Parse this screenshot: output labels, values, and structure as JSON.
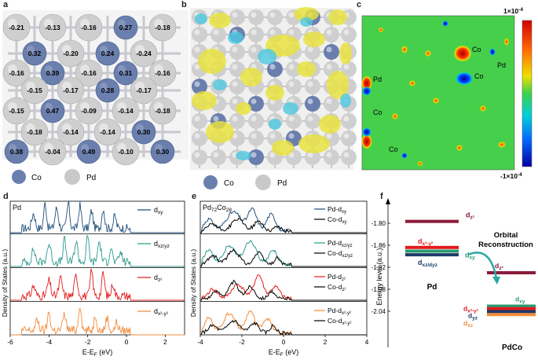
{
  "panels": {
    "a": {
      "label": "a",
      "legend": {
        "co": "Co",
        "pd": "Pd"
      },
      "charges": [
        {
          "v": "-0.21",
          "t": "pd"
        },
        {
          "v": "-0.13",
          "t": "pd"
        },
        {
          "v": "-0.16",
          "t": "pd"
        },
        {
          "v": "0.27",
          "t": "co"
        },
        {
          "v": "-0.18",
          "t": "pd"
        },
        {
          "v": "0.32",
          "t": "co"
        },
        {
          "v": "-0.20",
          "t": "pd"
        },
        {
          "v": "0.24",
          "t": "co"
        },
        {
          "v": "-0.24",
          "t": "pd"
        },
        {
          "v": "-0.16",
          "t": "pd"
        },
        {
          "v": "0.39",
          "t": "co"
        },
        {
          "v": "-0.16",
          "t": "pd"
        },
        {
          "v": "0.31",
          "t": "co"
        },
        {
          "v": "-0.16",
          "t": "pd"
        },
        {
          "v": "-0.15",
          "t": "pd"
        },
        {
          "v": "-0.17",
          "t": "pd"
        },
        {
          "v": "0.28",
          "t": "co"
        },
        {
          "v": "-0.17",
          "t": "pd"
        },
        {
          "v": "-0.15",
          "t": "pd"
        },
        {
          "v": "0.47",
          "t": "co"
        },
        {
          "v": "-0.09",
          "t": "pd"
        },
        {
          "v": "-0.14",
          "t": "pd"
        },
        {
          "v": "-0.18",
          "t": "pd"
        },
        {
          "v": "-0.18",
          "t": "pd"
        },
        {
          "v": "-0.14",
          "t": "pd"
        },
        {
          "v": "-0.14",
          "t": "pd"
        },
        {
          "v": "0.30",
          "t": "co"
        },
        {
          "v": "0.38",
          "t": "co"
        },
        {
          "v": "-0.04",
          "t": "pd"
        },
        {
          "v": "0.49",
          "t": "co"
        },
        {
          "v": "-0.10",
          "t": "pd"
        },
        {
          "v": "0.30",
          "t": "co"
        }
      ]
    },
    "b": {
      "label": "b",
      "legend": {
        "co": "Co",
        "pd": "Pd"
      }
    },
    "c": {
      "label": "c",
      "scale_max": "1×10",
      "scale_max_exp": "-4",
      "scale_min": "-1×10",
      "scale_min_exp": "-4",
      "atoms": [
        "Co",
        "Pd",
        "Pd",
        "Co",
        "Co",
        "Co"
      ]
    },
    "d": {
      "label": "d",
      "title": "Pd",
      "ylabel": "Density of States (a.u.)",
      "xlabel_main": "E-E",
      "xlabel_sub": "F",
      "xlabel_unit": " (eV)",
      "xticks": [
        "-6",
        "-4",
        "-2",
        "0",
        "2"
      ],
      "legend": [
        {
          "base": "d",
          "sub": "xy",
          "color": "#1f4e79"
        },
        {
          "base": "d",
          "sub": "xz/yz",
          "color": "#2a9a8e"
        },
        {
          "base": "d",
          "sub": "z²",
          "color": "#e41a1c"
        },
        {
          "base": "d",
          "sub": "x²-y²",
          "color": "#f28c3c"
        }
      ]
    },
    "e": {
      "label": "e",
      "title_main": "Pd",
      "title_sub1": "72",
      "title_mid": "Co",
      "title_sub2": "28",
      "ylabel": "Density of States (a.u.)",
      "xlabel_main": "E-E",
      "xlabel_sub": "F",
      "xlabel_unit": " (eV)",
      "xticks": [
        "-4",
        "-2",
        "0",
        "2",
        "4"
      ],
      "legend": [
        {
          "pd": "Pd-d",
          "co": "Co-d",
          "sub": "xy",
          "color": "#1f4e79"
        },
        {
          "pd": "Pd-d",
          "co": "Co-d",
          "sub": "xz/yz",
          "color": "#2a9a8e"
        },
        {
          "pd": "Pd-d",
          "co": "Co-d",
          "sub": "z²",
          "color": "#e41a1c"
        },
        {
          "pd": "Pd-d",
          "co": "Co-d",
          "sub": "x²-y²",
          "color": "#f28c3c"
        }
      ]
    },
    "f": {
      "label": "f",
      "ylabel": "Energy level (a.u.)",
      "yticks": [
        "-1.80",
        "-1.86",
        "-1.92",
        "-1.98",
        "-2.04"
      ],
      "pd_label": "Pd",
      "pdco_label": "PdCo",
      "arrow_text_1": "Orbital",
      "arrow_text_2": "Reconstruction",
      "pd_levels": [
        {
          "name": "d",
          "sub": "z²",
          "color": "#8b1a3a"
        },
        {
          "name": "d",
          "sub": "x²-y²",
          "color": "#e41a1c"
        },
        {
          "name": "d",
          "sub": "xy",
          "color": "#2a9a6e"
        },
        {
          "name": "d",
          "sub": "xz/dyz",
          "color": "#1a3a6a"
        }
      ],
      "pdco_levels": [
        {
          "name": "d",
          "sub": "z²",
          "color": "#8b1a3a"
        },
        {
          "name": "d",
          "sub": "xy",
          "color": "#2a9a6e"
        },
        {
          "name": "d",
          "sub": "x²-y²",
          "color": "#e41a1c"
        },
        {
          "name": "d",
          "sub": "yz",
          "color": "#1a3a6a"
        },
        {
          "name": "d",
          "sub": "xz",
          "color": "#f28c3c"
        }
      ]
    }
  }
}
